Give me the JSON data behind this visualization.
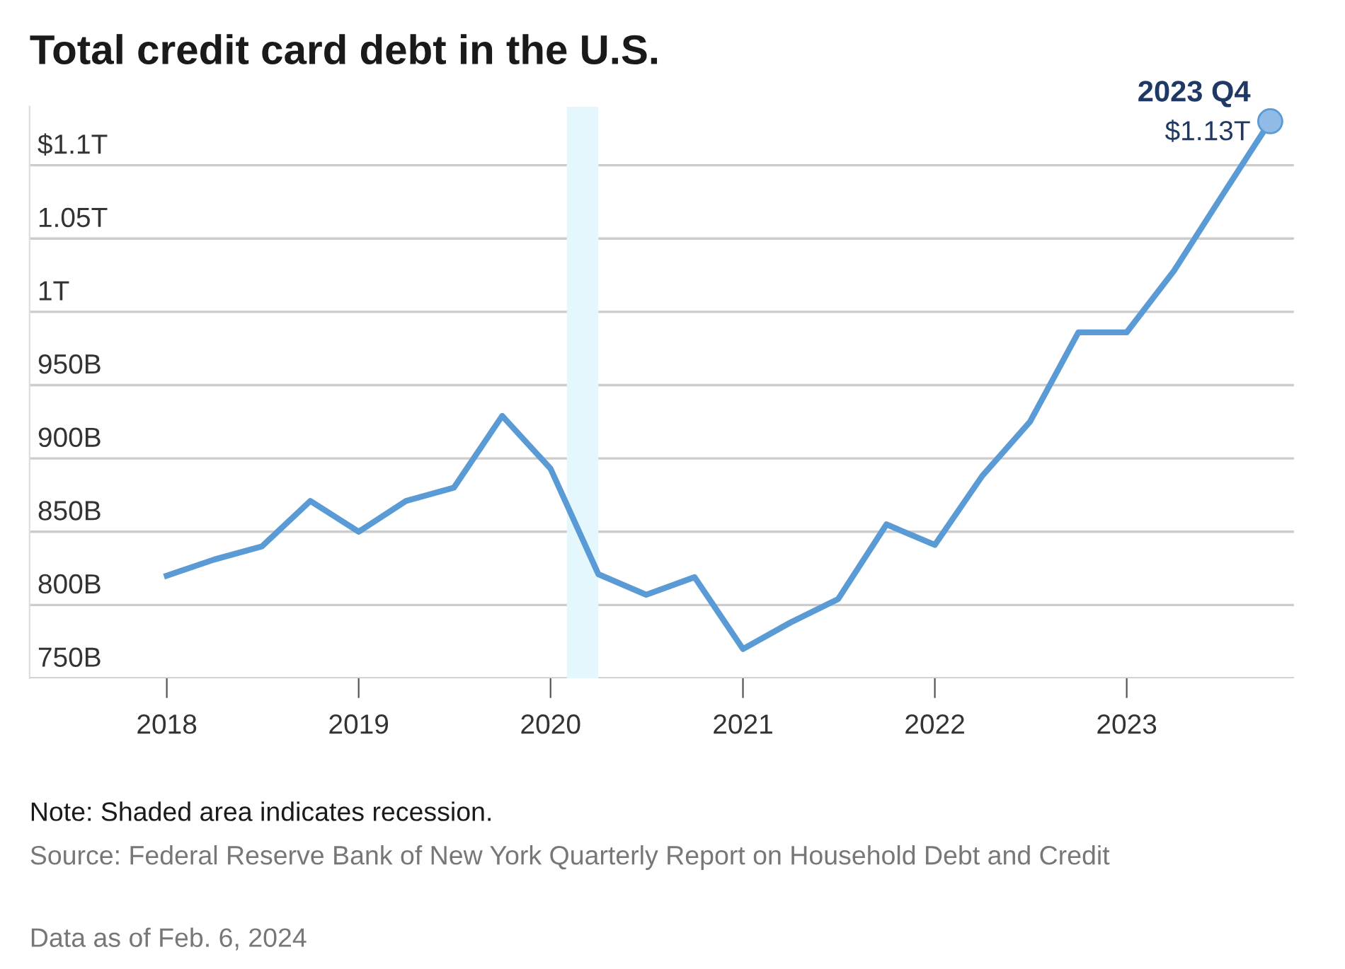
{
  "chart_data": {
    "type": "line",
    "title": "Total credit card debt in the U.S.",
    "x": [
      "2018-01",
      "2018-04",
      "2018-07",
      "2018-10",
      "2019-01",
      "2019-04",
      "2019-07",
      "2019-10",
      "2020-01",
      "2020-04",
      "2020-07",
      "2020-10",
      "2021-01",
      "2021-04",
      "2021-07",
      "2021-10",
      "2022-01",
      "2022-04",
      "2022-07",
      "2022-10",
      "2023-01",
      "2023-04",
      "2023-07",
      "2023-10"
    ],
    "series": [
      {
        "color": "#5b9bd5",
        "values": [
          820000000000,
          831000000000,
          840000000000,
          871000000000,
          850000000000,
          871000000000,
          880000000000,
          929000000000,
          893000000000,
          821000000000,
          807000000000,
          819000000000,
          770000000000,
          788000000000,
          804000000000,
          855000000000,
          841000000000,
          888000000000,
          925000000000,
          986000000000,
          986000000000,
          1028000000000,
          1079000000000,
          1130000000000
        ]
      },
      {
        "type": "scatter",
        "color": "#8fbbe6",
        "x": [
          "2023-10"
        ],
        "values": [
          1130000000000
        ],
        "marker": "circle"
      }
    ],
    "xlim": [
      "2017-04-15",
      "2023-11-15"
    ],
    "xticks": [
      {
        "value": "2018-01-01",
        "label": "2018"
      },
      {
        "value": "2019-01-01",
        "label": "2019"
      },
      {
        "value": "2020-01-01",
        "label": "2020"
      },
      {
        "value": "2021-01-01",
        "label": "2021"
      },
      {
        "value": "2022-01-01",
        "label": "2022"
      },
      {
        "value": "2023-01-01",
        "label": "2023"
      }
    ],
    "ylim": [
      750000000000,
      1140000000000
    ],
    "yticks": [
      {
        "value": 750000000000,
        "label": "750B"
      },
      {
        "value": 800000000000,
        "label": "800B"
      },
      {
        "value": 850000000000,
        "label": "850B"
      },
      {
        "value": 900000000000,
        "label": "900B"
      },
      {
        "value": 950000000000,
        "label": "950B"
      },
      {
        "value": 1000000000000,
        "label": "1T"
      },
      {
        "value": 1050000000000,
        "label": "1.05T"
      },
      {
        "value": 1100000000000,
        "label": "$1.1T"
      }
    ],
    "grid": "y",
    "bands": [
      {
        "axis": "x",
        "from": "2020-02-01",
        "to": "2020-04-01",
        "color": "#e3f7fd"
      }
    ],
    "annotations": [
      {
        "text": "2023 Q4",
        "x": "2023-10",
        "y": 1130000000000
      },
      {
        "text": "$1.13T",
        "x": "2023-10",
        "y": 1130000000000
      },
      "Note: Shaded area indicates recession.",
      "Source: Federal Reserve Bank of New York Quarterly Report on Household Debt and Credit",
      "Data as of Feb. 6, 2024"
    ]
  }
}
